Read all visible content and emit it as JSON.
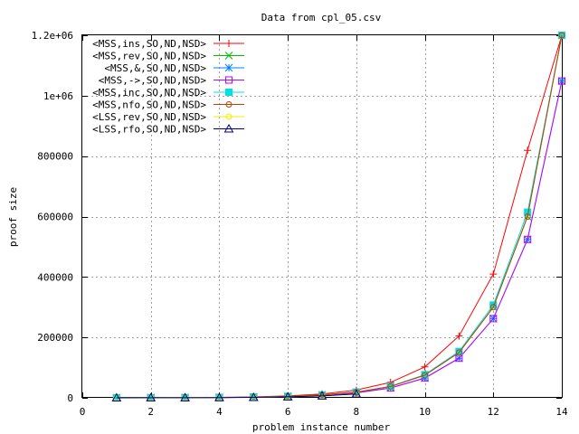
{
  "chart_data": {
    "type": "line",
    "title": "Data from cpl_05.csv",
    "xlabel": "problem instance number",
    "ylabel": "proof size",
    "xlim": [
      0,
      14
    ],
    "ylim": [
      0,
      1200000
    ],
    "x_ticks": [
      0,
      2,
      4,
      6,
      8,
      10,
      12,
      14
    ],
    "x_tick_labels": [
      "0",
      "2",
      "4",
      "6",
      "8",
      "10",
      "12",
      "14"
    ],
    "y_ticks": [
      0,
      200000,
      400000,
      600000,
      800000,
      1000000,
      1200000
    ],
    "y_tick_labels": [
      "0",
      "200000",
      "400000",
      "600000",
      "800000",
      "1e+06",
      "1.2e+06"
    ],
    "grid": true,
    "legend_position": "top-left",
    "series": [
      {
        "name": "<MSS,ins,SO,ND,NSD>",
        "color": "#ff0000",
        "marker": "plus",
        "x": [
          1,
          2,
          3,
          4,
          5,
          6,
          7,
          8,
          9,
          10,
          11,
          12,
          13,
          14
        ],
        "y": [
          200,
          400,
          800,
          1600,
          3200,
          6400,
          12800,
          25600,
          51200,
          102400,
          204800,
          409600,
          819200,
          1638400
        ]
      },
      {
        "name": "<MSS,rev,SO,ND,NSD>",
        "color": "#00c000",
        "marker": "cross",
        "x": [
          1,
          2,
          3,
          4,
          5,
          6,
          7,
          8,
          9,
          10,
          11,
          12,
          13,
          14
        ],
        "y": [
          200,
          400,
          700,
          1300,
          2500,
          4800,
          9500,
          18800,
          37500,
          75000,
          150000,
          300000,
          600000,
          1200000
        ]
      },
      {
        "name": "<MSS,&,SO,ND,NSD>",
        "color": "#0080ff",
        "marker": "star",
        "x": [
          1,
          2,
          3,
          4,
          5,
          6,
          7,
          8,
          9,
          10,
          11,
          12,
          13,
          14
        ],
        "y": [
          128,
          256,
          512,
          1024,
          2048,
          4096,
          8192,
          16384,
          32768,
          65536,
          131072,
          262144,
          524288,
          1048576
        ]
      },
      {
        "name": "<MSS,->,SO,ND,NSD>",
        "color": "#c000ff",
        "marker": "square-open",
        "x": [
          1,
          2,
          3,
          4,
          5,
          6,
          7,
          8,
          9,
          10,
          11,
          12,
          13,
          14
        ],
        "y": [
          128,
          256,
          512,
          1024,
          2048,
          4096,
          8192,
          16384,
          32768,
          65536,
          131072,
          262144,
          524288,
          1048576
        ]
      },
      {
        "name": "<MSS,inc,SO,ND,NSD>",
        "color": "#00e0e0",
        "marker": "square-filled",
        "x": [
          1,
          2,
          3,
          4,
          5,
          6,
          7,
          8,
          9,
          10,
          11,
          12,
          13,
          14
        ],
        "y": [
          150,
          300,
          600,
          1200,
          2400,
          4800,
          9600,
          19200,
          38400,
          76800,
          153600,
          307200,
          614400,
          1228800
        ]
      },
      {
        "name": "<MSS,nfo,SO,ND,NSD>",
        "color": "#c04000",
        "marker": "circle-open",
        "x": [
          1,
          2,
          3,
          4,
          5,
          6,
          7,
          8,
          9,
          10,
          11,
          12,
          13,
          14
        ],
        "y": [
          200,
          400,
          700,
          1300,
          2500,
          4800,
          9500,
          18800,
          37500,
          75000,
          150000,
          300000,
          600000,
          1200000
        ]
      },
      {
        "name": "<LSS,rev,SO,ND,NSD>",
        "color": "#f0f000",
        "marker": "circle-open",
        "x": [
          1,
          2,
          3,
          4,
          5,
          6,
          7,
          8
        ],
        "y": [
          100,
          200,
          400,
          800,
          1600,
          3200,
          6400,
          12800
        ]
      },
      {
        "name": "<LSS,rfo,SO,ND,NSD>",
        "color": "#000080",
        "marker": "triangle-open",
        "x": [
          1,
          2,
          3,
          4,
          5,
          6,
          7,
          8
        ],
        "y": [
          100,
          200,
          400,
          800,
          1600,
          3200,
          6400,
          12800
        ]
      }
    ]
  }
}
